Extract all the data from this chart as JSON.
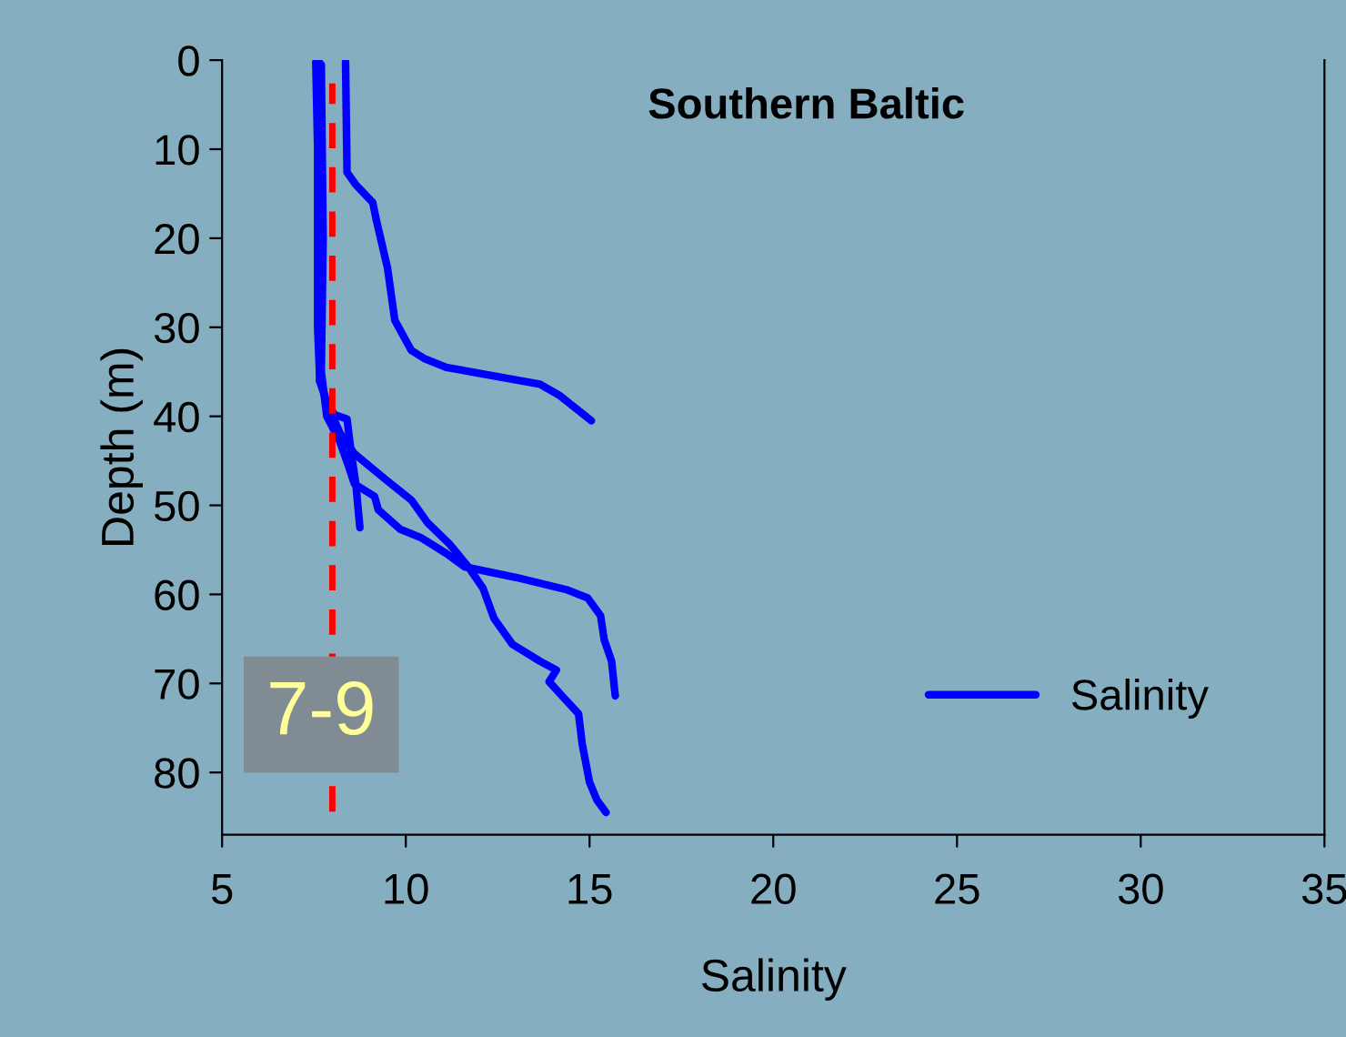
{
  "chart_data": {
    "type": "line",
    "title": "Southern Baltic",
    "xlabel": "Salinity",
    "ylabel": "Depth (m)",
    "xlim": [
      5,
      35
    ],
    "xticks": [
      5,
      10,
      15,
      20,
      25,
      30,
      35
    ],
    "ylim": [
      87,
      0
    ],
    "yticks": [
      0,
      10,
      20,
      30,
      40,
      50,
      60,
      70,
      80
    ],
    "grid": false,
    "legend": "bottom right",
    "line_style": "solid",
    "marker": "none",
    "series": [
      {
        "name": "Salinity",
        "color": "#0000ff",
        "x": [
          8.36,
          8.4,
          8.64,
          9.1,
          9.2,
          9.5,
          9.7,
          10.15,
          10.5,
          11.1,
          13.65,
          14.2,
          15.05
        ],
        "values": [
          0.2,
          12.6,
          14,
          16,
          18,
          23.3,
          29.2,
          32.6,
          33.5,
          34.5,
          36.4,
          37.7,
          40.5
        ]
      },
      {
        "color": "#0000ff",
        "x": [
          7.55,
          7.6,
          7.6,
          7.65,
          7.8,
          8.05,
          8.4,
          8.5,
          8.64,
          8.75
        ],
        "values": [
          0.2,
          10,
          30,
          35,
          37.9,
          39.8,
          40.3,
          43.7,
          47.6,
          52.5
        ]
      },
      {
        "color": "#0000ff",
        "x": [
          7.7,
          7.75,
          7.7,
          7.85,
          8.2,
          8.45,
          8.6,
          9.15,
          9.25,
          9.85,
          10.4,
          11.1,
          11.6,
          13.0,
          14.4,
          14.95,
          15.3,
          15.4,
          15.6,
          15.7
        ],
        "values": [
          0.5,
          20,
          35,
          40,
          42.8,
          45.7,
          47.6,
          49,
          50.5,
          52.7,
          53.6,
          55.4,
          56.9,
          58.1,
          59.5,
          60.4,
          62.4,
          65.1,
          67.5,
          71.4
        ]
      },
      {
        "color": "#0000ff",
        "x": [
          7.65,
          7.7,
          7.65,
          7.9,
          8.2,
          8.6,
          9.45,
          10.15,
          10.6,
          11.2,
          11.7,
          12.1,
          12.4,
          12.9,
          13.65,
          14.1,
          13.9,
          14.25,
          14.7,
          14.8,
          15.0,
          15.2,
          15.45
        ],
        "values": [
          0.3,
          25,
          36,
          39,
          41.8,
          44.2,
          47.1,
          49.4,
          52,
          54.4,
          56.9,
          59.3,
          62.7,
          65.6,
          67.5,
          68.5,
          69.8,
          71.4,
          73.4,
          76.8,
          81.1,
          83.1,
          84.5
        ]
      }
    ],
    "ref_lines": [
      {
        "axis": "x",
        "value": 8,
        "color": "#ff0000",
        "line_style": "dashed"
      }
    ],
    "annotations": [
      "7-9"
    ]
  }
}
